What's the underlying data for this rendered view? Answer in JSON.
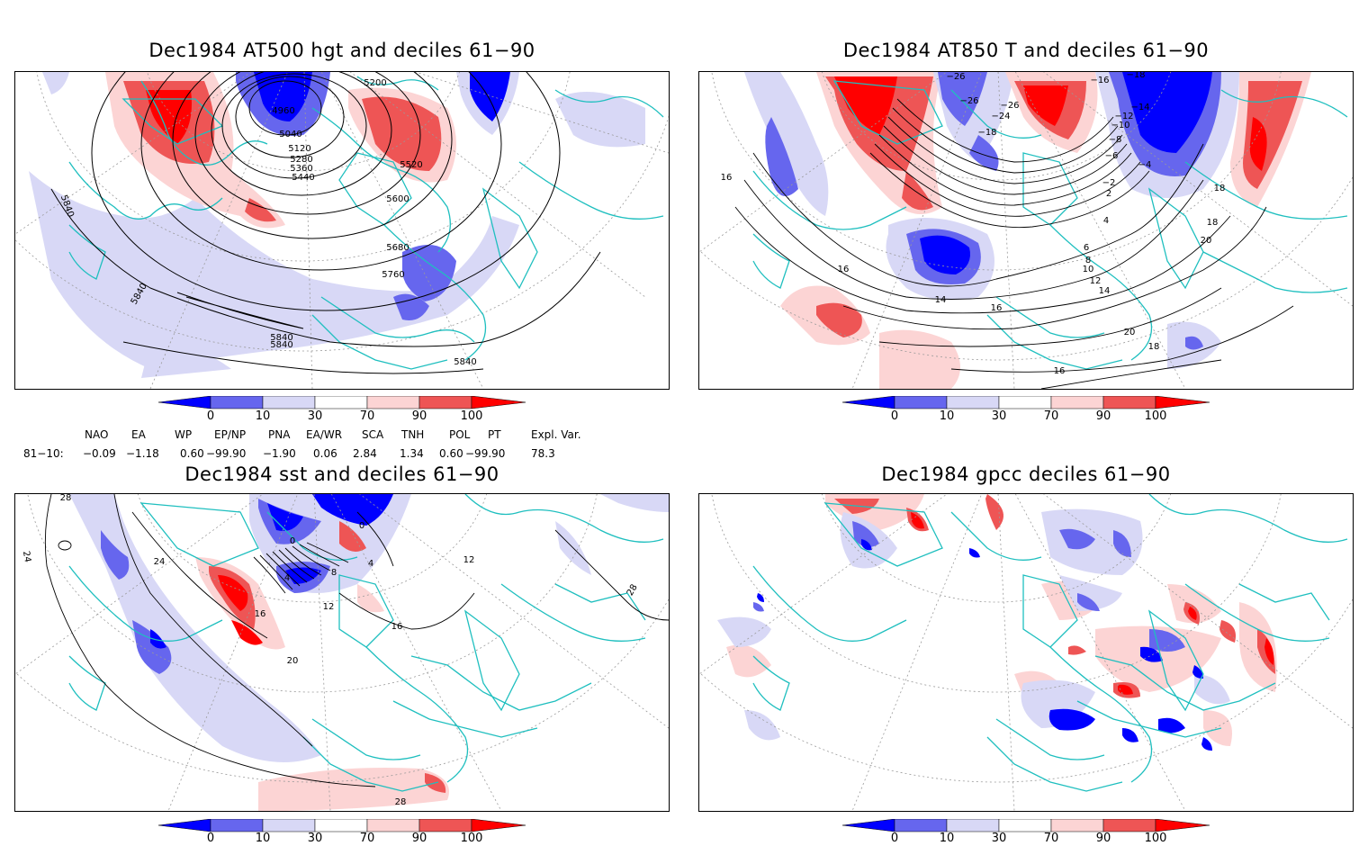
{
  "panels": {
    "tl": {
      "title": "Dec1984 AT500 hgt and deciles 61−90",
      "contour_labels": [
        "5200",
        "4960",
        "5040",
        "5120",
        "5280",
        "5360",
        "5440",
        "5520",
        "5600",
        "5680",
        "5760",
        "5840",
        "5840",
        "5840",
        "5840",
        "5840"
      ]
    },
    "tr": {
      "title": "Dec1984 AT850 T and deciles 61−90",
      "contour_labels": [
        "−26",
        "−26",
        "−26",
        "−24",
        "−18",
        "−16",
        "−18",
        "−14",
        "−12",
        "−10",
        "−8",
        "−6",
        "−4",
        "−2",
        "2",
        "4",
        "6",
        "8",
        "10",
        "12",
        "14",
        "14",
        "16",
        "16",
        "16",
        "16",
        "18",
        "18",
        "18",
        "20",
        "20"
      ]
    },
    "bl": {
      "title": "Dec1984 sst and deciles 61−90",
      "contour_labels": [
        "28",
        "24",
        "24",
        "0",
        "0",
        "4",
        "4",
        "8",
        "12",
        "16",
        "16",
        "20",
        "28",
        "28",
        "12"
      ]
    },
    "br": {
      "title": "Dec1984 gpcc deciles 61−90"
    }
  },
  "colorbar": {
    "labels": [
      "0",
      "10",
      "30",
      "70",
      "90",
      "100"
    ],
    "colors": [
      "#0000ff",
      "#6666ee",
      "#d8d8f6",
      "#ffffff",
      "#fcd4d4",
      "#ee5555",
      "#ff0000"
    ]
  },
  "indices": {
    "row_label": "81−10:",
    "headers": [
      "NAO",
      "EA",
      "WP",
      "EP/NP",
      "PNA",
      "EA/WR",
      "SCA",
      "TNH",
      "POL",
      "PT",
      "Expl. Var."
    ],
    "values": [
      "−0.09",
      "−1.18",
      "0.60",
      "−99.90",
      "−1.90",
      "0.06",
      "2.84",
      "1.34",
      "0.60",
      "−99.90",
      "78.3"
    ]
  },
  "colors": {
    "coast": "#1fbfbf",
    "contour": "#000000",
    "grid": "#9a9a9a",
    "blue_strong": "#0000ff",
    "blue_mid": "#6666ee",
    "blue_light": "#d8d8f6",
    "red_light": "#fcd4d4",
    "red_mid": "#ee5555",
    "red_strong": "#ff0000"
  }
}
